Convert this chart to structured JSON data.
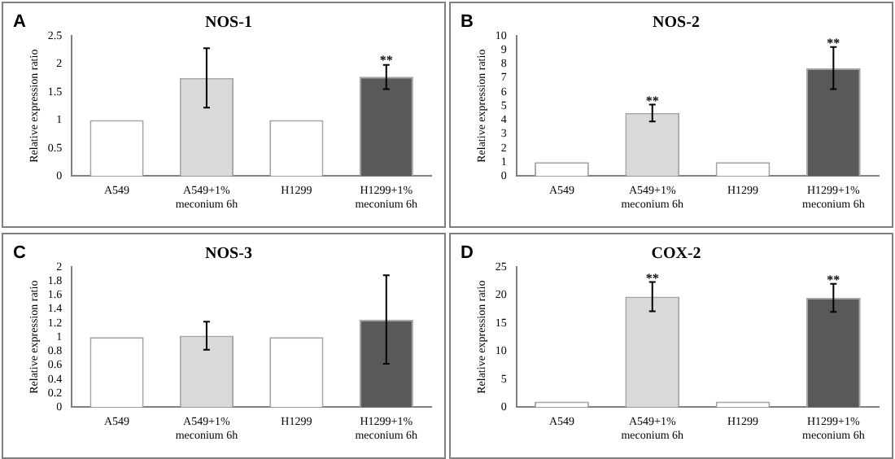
{
  "chart_data": [
    {
      "type": "bar",
      "title": "NOS-1",
      "ylabel": "Relative expression ratio",
      "categories": [
        "A549",
        "A549+1% meconium 6h",
        "H1299",
        "H1299+1% meconium 6h"
      ],
      "values": [
        1,
        1.75,
        1,
        1.77
      ],
      "colors": [
        "#ffffff",
        "#d9d9d9",
        "#ffffff",
        "#595959"
      ],
      "errors": [
        null,
        [
          1.22,
          2.28
        ],
        null,
        [
          1.55,
          1.98
        ]
      ],
      "ylim": [
        0,
        2.5
      ],
      "yticks": [
        0,
        0.5,
        1,
        1.5,
        2,
        2.5
      ],
      "grid": false,
      "legend": false,
      "annotations": [
        "A",
        {
          "text": "**",
          "x": "H1299+1% meconium 6h",
          "y": 2.05
        }
      ]
    },
    {
      "type": "bar",
      "title": "NOS-2",
      "ylabel": "Relative expression ratio",
      "categories": [
        "A549",
        "A549+1% meconium 6h",
        "H1299",
        "H1299+1% meconium 6h"
      ],
      "values": [
        1,
        4.5,
        1,
        7.7
      ],
      "colors": [
        "#ffffff",
        "#d9d9d9",
        "#ffffff",
        "#595959"
      ],
      "errors": [
        null,
        [
          3.9,
          5.1
        ],
        null,
        [
          6.2,
          9.2
        ]
      ],
      "ylim": [
        0,
        10
      ],
      "yticks": [
        0,
        1,
        2,
        3,
        4,
        5,
        6,
        7,
        8,
        9,
        10
      ],
      "grid": false,
      "legend": false,
      "annotations": [
        "B",
        {
          "text": "**",
          "x": "A549+1% meconium 6h",
          "y": 5.3
        },
        {
          "text": "**",
          "x": "H1299+1% meconium 6h",
          "y": 9.4
        }
      ]
    },
    {
      "type": "bar",
      "title": "NOS-3",
      "ylabel": "Relative expression ratio",
      "categories": [
        "A549",
        "A549+1% meconium 6h",
        "H1299",
        "H1299+1% meconium 6h"
      ],
      "values": [
        1,
        1.02,
        1,
        1.25
      ],
      "colors": [
        "#ffffff",
        "#d9d9d9",
        "#ffffff",
        "#595959"
      ],
      "errors": [
        null,
        [
          0.82,
          1.22
        ],
        null,
        [
          0.62,
          1.88
        ]
      ],
      "ylim": [
        0,
        2
      ],
      "yticks": [
        0,
        0.2,
        0.4,
        0.6,
        0.8,
        1,
        1.2,
        1.4,
        1.6,
        1.8,
        2
      ],
      "grid": false,
      "legend": false,
      "annotations": [
        "C"
      ]
    },
    {
      "type": "bar",
      "title": "COX-2",
      "ylabel": "Relative expression ratio",
      "categories": [
        "A549",
        "A549+1% meconium 6h",
        "H1299",
        "H1299+1% meconium 6h"
      ],
      "values": [
        1,
        19.7,
        1,
        19.5
      ],
      "colors": [
        "#ffffff",
        "#d9d9d9",
        "#ffffff",
        "#595959"
      ],
      "errors": [
        null,
        [
          17.1,
          22.3
        ],
        null,
        [
          17,
          22
        ]
      ],
      "ylim": [
        0,
        25
      ],
      "yticks": [
        0,
        5,
        10,
        15,
        20,
        25
      ],
      "grid": false,
      "legend": false,
      "annotations": [
        "D",
        {
          "text": "**",
          "x": "A549+1% meconium 6h",
          "y": 22.8
        },
        {
          "text": "**",
          "x": "H1299+1% meconium 6h",
          "y": 22.5
        }
      ]
    }
  ]
}
